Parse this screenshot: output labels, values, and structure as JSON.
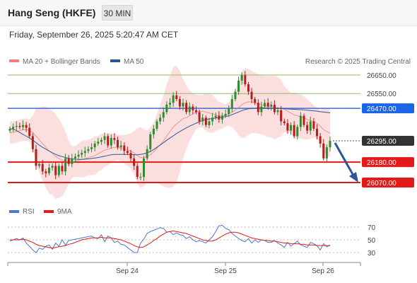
{
  "header": {
    "title": "Hang Seng (HKFE)",
    "timeframe": "30 MIN"
  },
  "datetime": "Friday, September 26, 2025 5:20:47 AM CET",
  "credit": "Research © 2025 Trading Central",
  "colors": {
    "bollinger": "#f08080",
    "ma50": "#2f5597",
    "resistance": "#8fbc5a",
    "pivot": "#3a6fd8",
    "support": "#e41a1a",
    "bull": "#2e8b2e",
    "bear": "#b71c1c",
    "rsi": "#4a78d0",
    "rsi_ma": "#e41a1a"
  },
  "chart_data": [
    {
      "type": "candlestick",
      "title": "Hang Seng (HKFE) 30 MIN",
      "legend": [
        "MA 20 + Bollinger Bands",
        "MA 50"
      ],
      "ylim": [
        26030,
        26720
      ],
      "x_ticks": [
        "Sep 24",
        "Sep 25",
        "Sep 26"
      ],
      "levels": [
        {
          "value": 26650,
          "label": "26650.00",
          "kind": "resistance"
        },
        {
          "value": 26550,
          "label": "26550.00",
          "kind": "resistance"
        },
        {
          "value": 26470,
          "label": "26470.00",
          "kind": "pivot"
        },
        {
          "value": 26295,
          "label": "26295.00",
          "kind": "last"
        },
        {
          "value": 26180,
          "label": "26180.00",
          "kind": "support"
        },
        {
          "value": 26070,
          "label": "26070.00",
          "kind": "support"
        }
      ],
      "close": [
        26360,
        26370,
        26375,
        26370,
        26380,
        26365,
        26320,
        26250,
        26160,
        26170,
        26130,
        26120,
        26150,
        26160,
        26110,
        26160,
        26130,
        26200,
        26170,
        26200,
        26210,
        26220,
        26230,
        26240,
        26250,
        26260,
        26280,
        26290,
        26300,
        26320,
        26270,
        26310,
        26300,
        26260,
        26270,
        26240,
        26230,
        26200,
        26160,
        26100,
        26100,
        26200,
        26250,
        26330,
        26360,
        26400,
        26420,
        26450,
        26490,
        26500,
        26540,
        26520,
        26480,
        26500,
        26450,
        26480,
        26460,
        26450,
        26400,
        26420,
        26380,
        26400,
        26420,
        26430,
        26410,
        26430,
        26440,
        26470,
        26520,
        26560,
        26620,
        26650,
        26600,
        26560,
        26520,
        26500,
        26450,
        26480,
        26500,
        26480,
        26490,
        26450,
        26460,
        26400,
        26390,
        26350,
        26380,
        26320,
        26370,
        26430,
        26380,
        26350,
        26400,
        26360,
        26320,
        26280,
        26200,
        26260,
        26295
      ],
      "ma20": [
        26340,
        26340,
        26345,
        26350,
        26355,
        26355,
        26350,
        26340,
        26320,
        26300,
        26280,
        26260,
        26240,
        26230,
        26210,
        26200,
        26190,
        26185,
        26180,
        26180,
        26185,
        26190,
        26195,
        26200,
        26205,
        26210,
        26215,
        26225,
        26235,
        26245,
        26250,
        26255,
        26260,
        26260,
        26255,
        26250,
        26245,
        26240,
        26230,
        26215,
        26205,
        26205,
        26210,
        26220,
        26235,
        26255,
        26275,
        26295,
        26320,
        26345,
        26370,
        26385,
        26400,
        26415,
        26420,
        26430,
        26440,
        26450,
        26455,
        26455,
        26450,
        26445,
        26440,
        26435,
        26430,
        26430,
        26432,
        26440,
        26450,
        26460,
        26475,
        26490,
        26500,
        26505,
        26505,
        26500,
        26495,
        26490,
        26485,
        26480,
        26480,
        26475,
        26475,
        26470,
        26465,
        26455,
        26445,
        26435,
        26430,
        26425,
        26420,
        26410,
        26405,
        26400,
        26390,
        26375,
        26355,
        26345,
        26335
      ],
      "ma50": [
        26360,
        26358,
        26350,
        26340,
        26330,
        26320,
        26310,
        26298,
        26285,
        26272,
        26260,
        26250,
        26240,
        26230,
        26222,
        26215,
        26210,
        26205,
        26200,
        26198,
        26196,
        26195,
        26195,
        26196,
        26198,
        26200,
        26202,
        26205,
        26208,
        26212,
        26216,
        26220,
        26222,
        26222,
        26222,
        26222,
        26222,
        26221,
        26220,
        26220,
        26222,
        26225,
        26230,
        26238,
        26248,
        26260,
        26272,
        26285,
        26298,
        26310,
        26322,
        26334,
        26345,
        26355,
        26365,
        26374,
        26382,
        26390,
        26398,
        26405,
        26410,
        26413,
        26415,
        26418,
        26420,
        26423,
        26426,
        26430,
        26436,
        26443,
        26450,
        26458,
        26464,
        26468,
        26470,
        26471,
        26472,
        26472,
        26472,
        26472,
        26471,
        26470,
        26470,
        26469,
        26468,
        26467,
        26466,
        26465,
        26464,
        26463,
        26462,
        26460,
        26458,
        26457,
        26455,
        26452,
        26450,
        26448,
        26446
      ]
    },
    {
      "type": "line",
      "title": "RSI",
      "legend": [
        "RSI",
        "9MA"
      ],
      "ylim": [
        18,
        82
      ],
      "y_ticks": [
        70,
        50,
        30
      ],
      "rsi": [
        48,
        50,
        52,
        50,
        53,
        45,
        40,
        34,
        30,
        37,
        35,
        40,
        42,
        35,
        45,
        40,
        50,
        42,
        49,
        50,
        51,
        52,
        53,
        54,
        55,
        56,
        53,
        52,
        58,
        47,
        56,
        53,
        46,
        48,
        43,
        42,
        38,
        34,
        30,
        30,
        45,
        51,
        60,
        63,
        65,
        67,
        69,
        68,
        62,
        63,
        58,
        61,
        58,
        57,
        52,
        55,
        50,
        47,
        49,
        47,
        45,
        50,
        55,
        63,
        72,
        73,
        68,
        66,
        60,
        56,
        52,
        49,
        47,
        52,
        45,
        50,
        46,
        50,
        49,
        46,
        46,
        49,
        45,
        42,
        38,
        46,
        40,
        44,
        48,
        42,
        40,
        38,
        46,
        44,
        41,
        34,
        44,
        39,
        42
      ],
      "ma9": [
        50,
        50,
        50,
        50,
        51,
        50,
        48,
        46,
        43,
        41,
        40,
        39,
        38,
        37,
        38,
        39,
        40,
        41,
        43,
        44,
        46,
        48,
        50,
        51,
        52,
        53,
        53,
        53,
        54,
        53,
        53,
        53,
        52,
        51,
        50,
        48,
        46,
        44,
        41,
        39,
        38,
        39,
        42,
        45,
        49,
        52,
        56,
        59,
        62,
        63,
        64,
        63,
        62,
        61,
        60,
        58,
        56,
        54,
        52,
        50,
        49,
        48,
        48,
        50,
        53,
        56,
        59,
        61,
        62,
        62,
        61,
        59,
        57,
        55,
        53,
        52,
        51,
        50,
        49,
        49,
        48,
        48,
        47,
        46,
        45,
        45,
        44,
        44,
        44,
        43,
        43,
        42,
        42,
        42,
        41,
        41,
        41,
        41,
        41
      ]
    }
  ]
}
